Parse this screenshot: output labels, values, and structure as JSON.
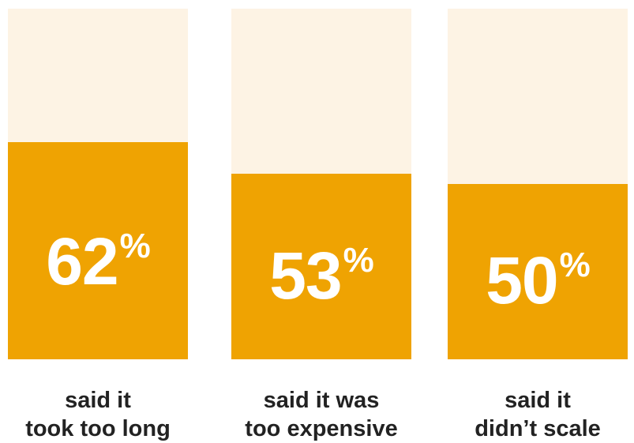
{
  "chart_data": {
    "type": "bar",
    "categories": [
      "said it took too long",
      "said it was too expensive",
      "said it didn’t scale"
    ],
    "values": [
      62,
      53,
      50
    ],
    "ylim": [
      0,
      100
    ],
    "value_suffix": "%",
    "colors": {
      "fill": "#efa302",
      "track": "#fdf3e4",
      "value_text": "#ffffff",
      "label_text": "#222222"
    }
  },
  "bars": [
    {
      "value": "62",
      "suffix": "%",
      "label_line1": "said it",
      "label_line2": "took too long"
    },
    {
      "value": "53",
      "suffix": "%",
      "label_line1": "said it was",
      "label_line2": "too expensive"
    },
    {
      "value": "50",
      "suffix": "%",
      "label_line1": "said it",
      "label_line2": "didn’t scale"
    }
  ]
}
